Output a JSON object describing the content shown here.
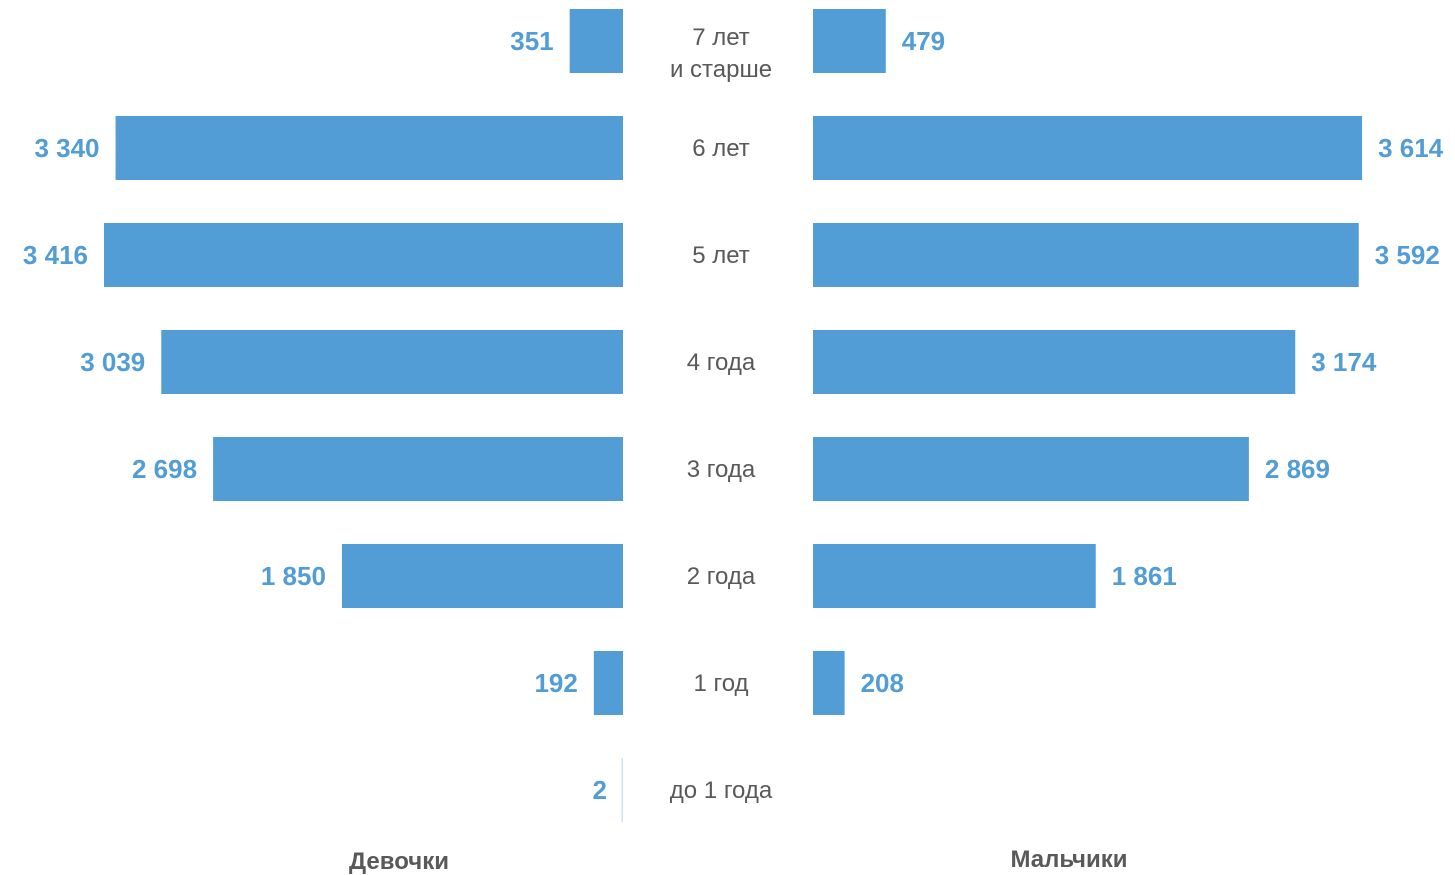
{
  "chart_data": {
    "type": "bar",
    "orientation": "horizontal-butterfly",
    "categories": [
      "7 лет\nи старше",
      "6 лет",
      "5 лет",
      "4 года",
      "3 года",
      "2 года",
      "1 год",
      "до 1 года"
    ],
    "series": [
      {
        "name": "Девочки",
        "values": [
          351,
          3340,
          3416,
          3039,
          2698,
          1850,
          192,
          2
        ],
        "labels": [
          "351",
          "3 340",
          "3 416",
          "3 039",
          "2 698",
          "1 850",
          "192",
          "2"
        ]
      },
      {
        "name": "Мальчики",
        "values": [
          479,
          3614,
          3592,
          3174,
          2869,
          1861,
          208,
          null
        ],
        "labels": [
          "479",
          "3 614",
          "3 592",
          "3 174",
          "2 869",
          "1 861",
          "208",
          ""
        ]
      }
    ],
    "xlim": [
      0,
      3700
    ],
    "grid": false,
    "legend": "bottom (labels under each side)",
    "bar_color": "#529dd6",
    "label_color": "#529dd6",
    "text_color": "#595959"
  }
}
